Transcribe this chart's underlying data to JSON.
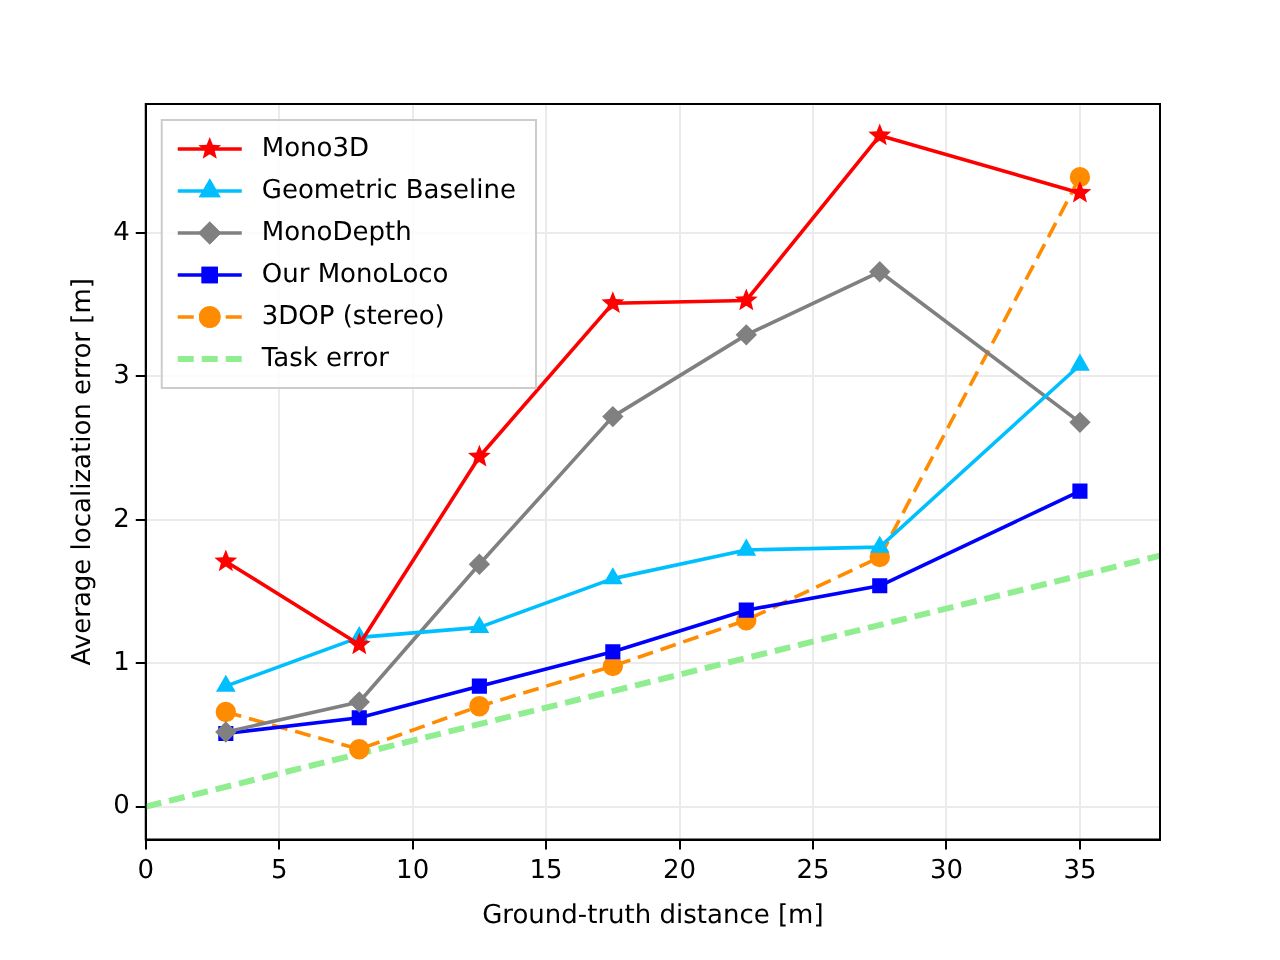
{
  "chart_data": {
    "type": "line",
    "xlabel": "Ground-truth distance [m]",
    "ylabel": "Average localization error [m]",
    "x": [
      3,
      8,
      12.5,
      17.5,
      22.5,
      27.5,
      35
    ],
    "xlim": [
      0,
      38
    ],
    "xticks": [
      0,
      5,
      10,
      15,
      20,
      25,
      30,
      35
    ],
    "ylim": [
      -0.23,
      4.9
    ],
    "yticks": [
      0,
      1,
      2,
      3,
      4
    ],
    "grid": true,
    "legend": "top left",
    "series": [
      {
        "name": "Mono3D",
        "color": "#ff0000",
        "marker": "star",
        "line_style": "solid",
        "values": [
          1.71,
          1.13,
          2.44,
          3.51,
          3.53,
          4.68,
          4.28
        ]
      },
      {
        "name": "Geometric Baseline",
        "color": "#00bfff",
        "marker": "triangle",
        "line_style": "solid",
        "values": [
          0.84,
          1.18,
          1.25,
          1.59,
          1.79,
          1.81,
          3.08
        ]
      },
      {
        "name": "MonoDepth",
        "color": "#808080",
        "marker": "diamond",
        "line_style": "solid",
        "values": [
          0.52,
          0.73,
          1.69,
          2.72,
          3.29,
          3.73,
          2.68
        ]
      },
      {
        "name": "Our MonoLoco",
        "color": "#0000ff",
        "marker": "square",
        "line_style": "solid",
        "values": [
          0.51,
          0.62,
          0.84,
          1.08,
          1.37,
          1.54,
          2.2
        ]
      },
      {
        "name": "3DOP (stereo)",
        "color": "#ff8c00",
        "marker": "circle",
        "line_style": "dashed",
        "values": [
          0.66,
          0.4,
          0.7,
          0.98,
          1.3,
          1.74,
          4.39
        ]
      },
      {
        "name": "Task error",
        "color": "#90ee90",
        "marker": "none",
        "line_style": "dashed",
        "x": [
          0,
          38
        ],
        "values": [
          0,
          1.75
        ]
      }
    ]
  }
}
